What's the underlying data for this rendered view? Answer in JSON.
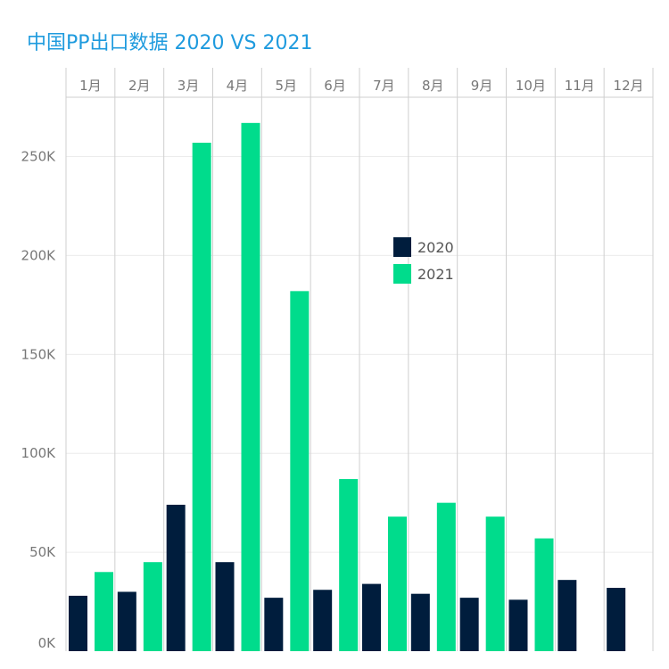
{
  "chart_data": {
    "type": "bar",
    "title": "中国PP出口数据 2020 VS 2021",
    "categories": [
      "1月",
      "2月",
      "3月",
      "4月",
      "5月",
      "6月",
      "7月",
      "8月",
      "9月",
      "10月",
      "11月",
      "12月"
    ],
    "series": [
      {
        "name": "2020",
        "color": "#001d3d",
        "values": [
          28000,
          30000,
          74000,
          45000,
          27000,
          31000,
          34000,
          29000,
          27000,
          26000,
          36000,
          32000
        ]
      },
      {
        "name": "2021",
        "color": "#00dc8c",
        "values": [
          40000,
          45000,
          257000,
          267000,
          182000,
          87000,
          68000,
          75000,
          68000,
          57000,
          null,
          null
        ]
      }
    ],
    "y_ticks": [
      0,
      50000,
      100000,
      150000,
      200000,
      250000
    ],
    "y_tick_labels": [
      "0K",
      "50K",
      "100K",
      "150K",
      "200K",
      "250K"
    ],
    "ylim": [
      0,
      280000
    ],
    "xlabel": "",
    "ylabel": "",
    "legend_position": "center-right"
  }
}
